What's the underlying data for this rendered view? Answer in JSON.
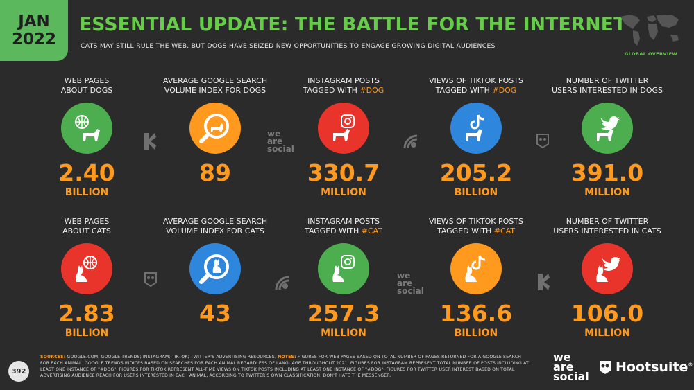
{
  "badge": {
    "month": "JAN",
    "year": "2022"
  },
  "title": "ESSENTIAL UPDATE: THE BATTLE FOR THE INTERNET",
  "subtitle": "CATS MAY STILL RULE THE WEB, BUT DOGS HAVE SEIZED NEW OPPORTUNITIES TO ENGAGE GROWING DIGITAL AUDIENCES",
  "global_overview": "GLOBAL OVERVIEW",
  "dogs": [
    {
      "label": "WEB PAGES\nABOUT DOGS",
      "value": "2.40",
      "unit": "BILLION",
      "icon": "globe-dog-icon",
      "color": "#4cae4f"
    },
    {
      "label": "AVERAGE GOOGLE SEARCH\nVOLUME INDEX FOR DOGS",
      "value": "89",
      "unit": "",
      "icon": "magnifier-dog-icon",
      "color": "#ff9a1e"
    },
    {
      "label_pre": "INSTAGRAM POSTS\nTAGGED WITH ",
      "hashtag": "#DOG",
      "value": "330.7",
      "unit": "MILLION",
      "icon": "instagram-dog-icon",
      "color": "#e8342b"
    },
    {
      "label_pre": "VIEWS OF TIKTOK POSTS\nTAGGED WITH ",
      "hashtag": "#DOG",
      "value": "205.2",
      "unit": "BILLION",
      "icon": "tiktok-dog-icon",
      "color": "#2f87dd"
    },
    {
      "label": "NUMBER OF TWITTER\nUSERS INTERESTED IN DOGS",
      "value": "391.0",
      "unit": "MILLION",
      "icon": "twitter-dog-icon",
      "color": "#4cae4f"
    }
  ],
  "cats": [
    {
      "label": "WEB PAGES\nABOUT CATS",
      "value": "2.83",
      "unit": "BILLION",
      "icon": "globe-cat-icon",
      "color": "#e8342b"
    },
    {
      "label": "AVERAGE GOOGLE SEARCH\nVOLUME INDEX FOR CATS",
      "value": "43",
      "unit": "",
      "icon": "magnifier-cat-icon",
      "color": "#2f87dd"
    },
    {
      "label_pre": "INSTAGRAM POSTS\nTAGGED WITH ",
      "hashtag": "#CAT",
      "value": "257.3",
      "unit": "MILLION",
      "icon": "instagram-cat-icon",
      "color": "#4cae4f"
    },
    {
      "label_pre": "VIEWS OF TIKTOK POSTS\nTAGGED WITH ",
      "hashtag": "#CAT",
      "value": "136.6",
      "unit": "BILLION",
      "icon": "tiktok-cat-icon",
      "color": "#ff9a1e"
    },
    {
      "label": "NUMBER OF TWITTER\nUSERS INTERESTED IN CATS",
      "value": "106.0",
      "unit": "MILLION",
      "icon": "twitter-cat-icon",
      "color": "#e8342b"
    }
  ],
  "separators": {
    "kepios": "KEPIOS",
    "wearesocial": "we\nare\nsocial"
  },
  "page_number": "392",
  "footer": {
    "sources_label": "SOURCES:",
    "sources": " GOOGLE.COM; GOOGLE TRENDS; INSTAGRAM; TIKTOK; TWITTER'S ADVERTISING RESOURCES. ",
    "notes_label": "NOTES:",
    "notes": " FIGURES FOR WEB PAGES BASED ON TOTAL NUMBER OF PAGES RETURNED FOR A GOOGLE SEARCH FOR EACH ANIMAL. GOOGLE TRENDS INDICES BASED ON SEARCHES FOR EACH ANIMAL REGARDLESS OF LANGUAGE THROUGHOUT 2021. FIGURES FOR INSTAGRAM REPRESENT TOTAL NUMBER OF POSTS INCLUDING AT LEAST ONE INSTANCE OF \"#DOG\". FIGURES FOR TIKTOK REPRESENT ALL-TIME VIEWS ON TIKTOK POSTS INCLUDING AT LEAST ONE INSTANCE OF \"#DOG\". FIGURES FOR TWITTER USER INTEREST BASED ON TOTAL ADVERTISING AUDIENCE REACH FOR USERS INTERESTED IN EACH ANIMAL, ACCORDING TO TWITTER'S OWN CLASSIFICATION. DON'T HATE THE MESSENGER."
  },
  "logos": {
    "wearesocial": "we\nare\nsocial",
    "hootsuite": "Hootsuite"
  }
}
